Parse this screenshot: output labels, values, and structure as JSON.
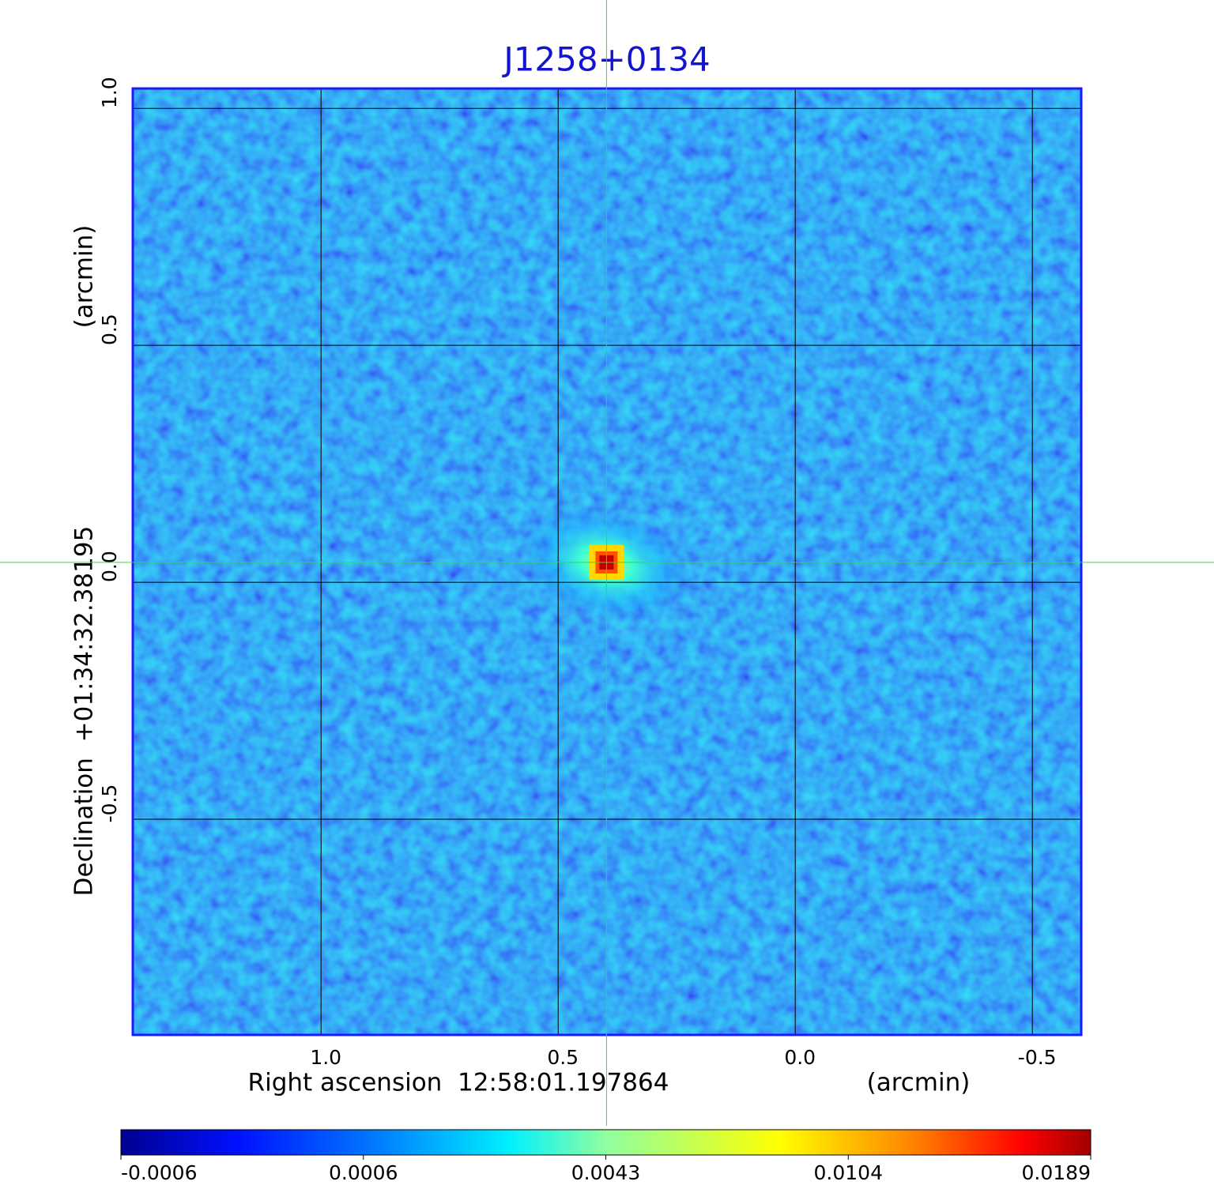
{
  "chart_data": {
    "type": "image",
    "title": "J1258+0134",
    "xlabel": "Right ascension  12:58:01.197864",
    "xunit": "(arcmin)",
    "ylabel": "Declination  +01:34:32.38195",
    "yunit": "(arcmin)",
    "xlim": [
      1.397,
      -0.603
    ],
    "ylim": [
      -0.955,
      1.042
    ],
    "xticks": [
      {
        "value": 1,
        "label": "1.0"
      },
      0.5,
      {
        "value": 0,
        "label": "0.0"
      },
      -0.5
    ],
    "yticks": [
      -0.5,
      {
        "value": 0,
        "label": "0.0"
      },
      0.5,
      {
        "value": 1,
        "label": "1.0"
      }
    ],
    "grid": true,
    "crosshair": {
      "x": 0.398,
      "y": 0.042,
      "color": "#33dd33"
    },
    "colorbar_ticks": [
      -0.0006,
      0.0006,
      0.0043,
      0.0104,
      0.0189
    ]
  }
}
